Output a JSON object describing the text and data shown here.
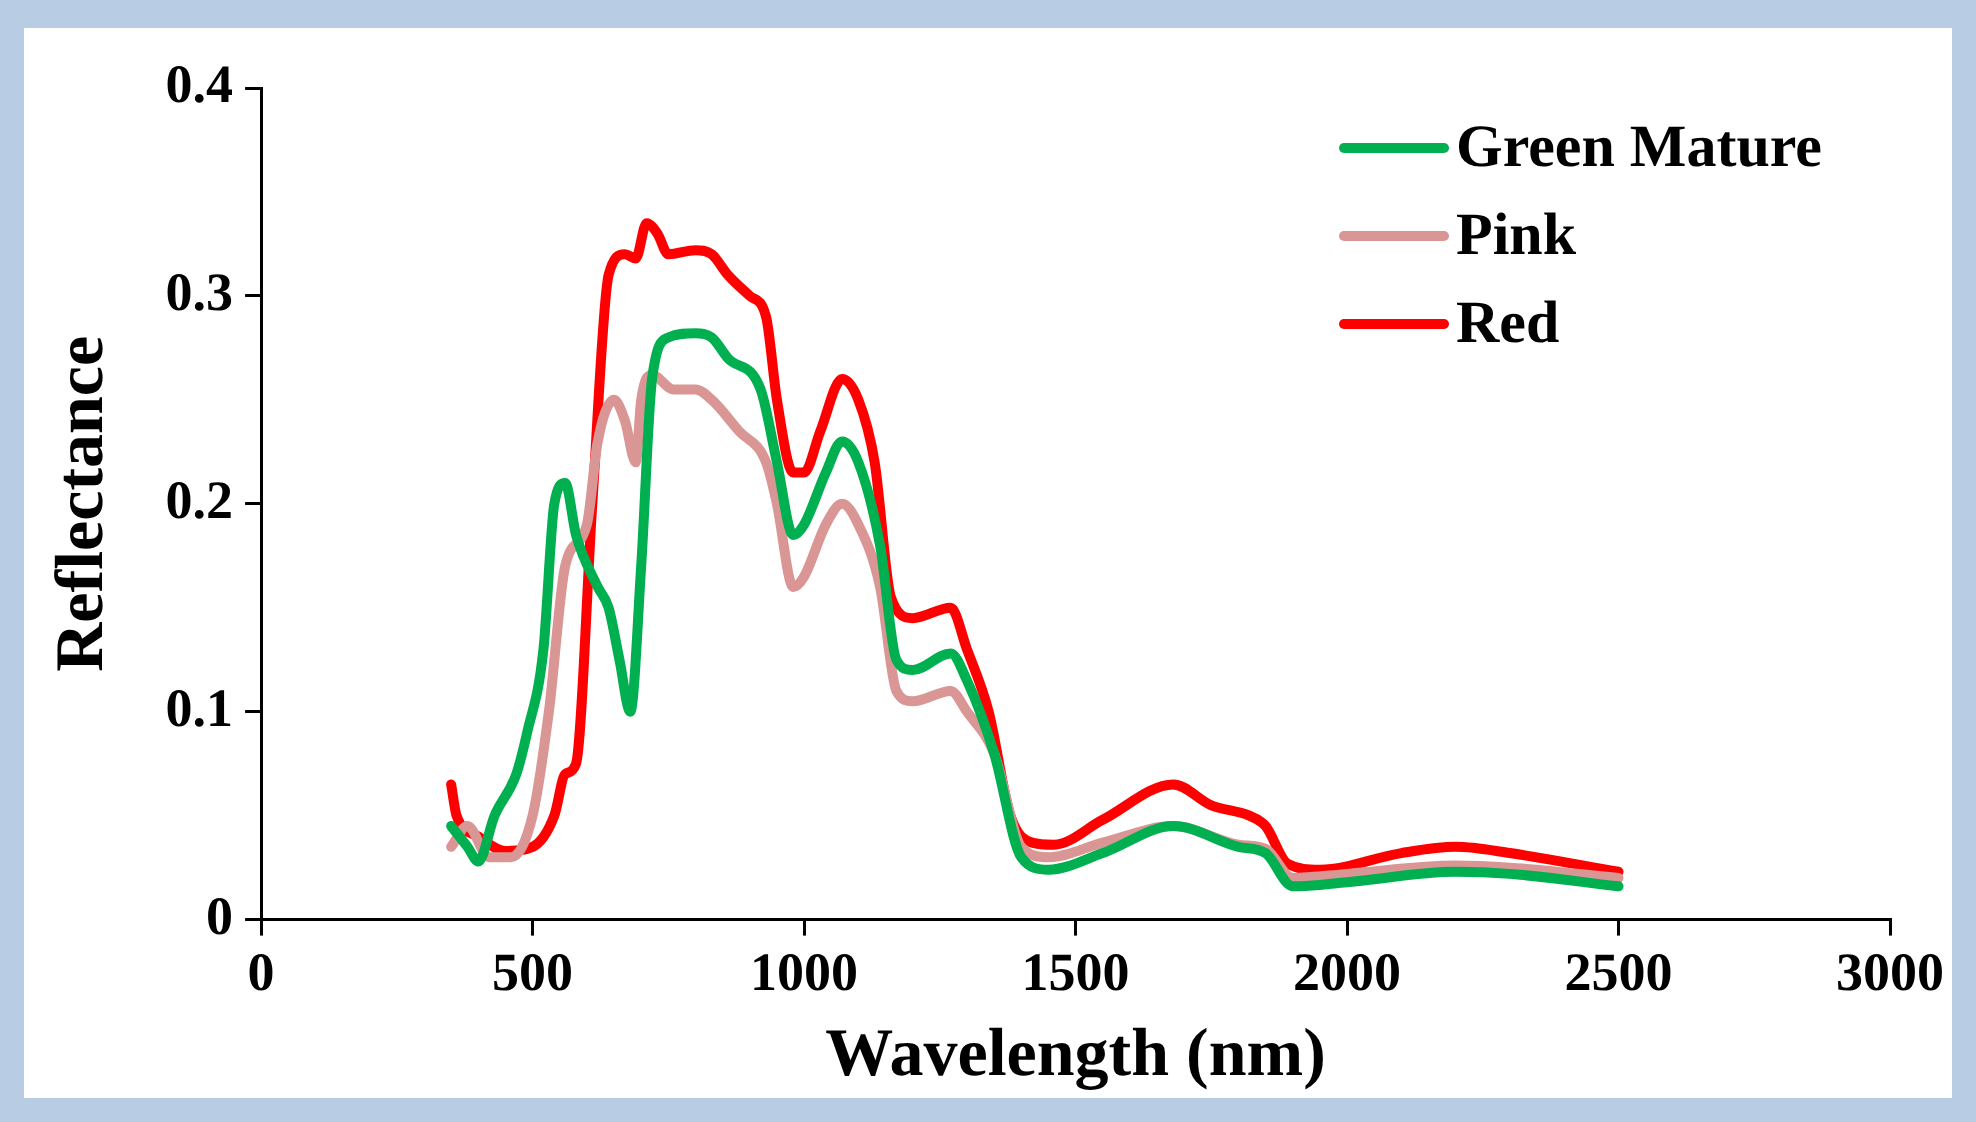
{
  "chart_data": {
    "type": "line",
    "xlabel": "Wavelength (nm)",
    "ylabel": "Reflectance",
    "xlim": [
      0,
      3000
    ],
    "xticks": [
      0,
      500,
      1000,
      1500,
      2000,
      2500,
      3000
    ],
    "ylim": [
      0,
      0.4
    ],
    "yticks": [
      0,
      0.1,
      0.2,
      0.3,
      0.4
    ],
    "grid": false,
    "legend": "top right",
    "marker": "none",
    "line_style": "solid",
    "series": [
      {
        "name": "Green Mature",
        "color": "#00b050",
        "x": [
          350,
          380,
          400,
          430,
          470,
          490,
          520,
          540,
          560,
          580,
          620,
          640,
          660,
          680,
          700,
          720,
          750,
          800,
          830,
          860,
          920,
          950,
          980,
          1000,
          1040,
          1070,
          1100,
          1140,
          1170,
          1200,
          1270,
          1300,
          1350,
          1400,
          1450,
          1550,
          1680,
          1800,
          1850,
          1900,
          2000,
          2200,
          2300,
          2500
        ],
        "values": [
          0.045,
          0.035,
          0.028,
          0.05,
          0.07,
          0.09,
          0.13,
          0.2,
          0.21,
          0.185,
          0.16,
          0.15,
          0.125,
          0.1,
          0.17,
          0.26,
          0.28,
          0.282,
          0.28,
          0.27,
          0.255,
          0.22,
          0.185,
          0.19,
          0.215,
          0.23,
          0.22,
          0.18,
          0.125,
          0.12,
          0.128,
          0.115,
          0.08,
          0.03,
          0.024,
          0.032,
          0.045,
          0.035,
          0.032,
          0.016,
          0.018,
          0.023,
          0.022,
          0.016
        ]
      },
      {
        "name": "Pink",
        "color": "#d99694",
        "x": [
          350,
          380,
          420,
          460,
          500,
          530,
          560,
          600,
          620,
          650,
          670,
          690,
          700,
          720,
          760,
          800,
          830,
          880,
          930,
          950,
          980,
          1000,
          1040,
          1070,
          1100,
          1140,
          1170,
          1200,
          1270,
          1300,
          1350,
          1400,
          1450,
          1550,
          1680,
          1800,
          1850,
          1900,
          2000,
          2200,
          2300,
          2500
        ],
        "values": [
          0.035,
          0.045,
          0.03,
          0.03,
          0.05,
          0.1,
          0.17,
          0.19,
          0.23,
          0.25,
          0.24,
          0.22,
          0.25,
          0.262,
          0.255,
          0.255,
          0.25,
          0.235,
          0.22,
          0.2,
          0.16,
          0.165,
          0.19,
          0.2,
          0.19,
          0.16,
          0.11,
          0.105,
          0.11,
          0.1,
          0.08,
          0.035,
          0.03,
          0.037,
          0.045,
          0.036,
          0.034,
          0.02,
          0.022,
          0.026,
          0.025,
          0.02
        ]
      },
      {
        "name": "Red",
        "color": "#ff0000",
        "x": [
          350,
          360,
          400,
          450,
          500,
          540,
          560,
          580,
          610,
          640,
          670,
          690,
          710,
          730,
          750,
          800,
          830,
          860,
          900,
          930,
          950,
          980,
          1000,
          1030,
          1070,
          1100,
          1130,
          1160,
          1200,
          1270,
          1300,
          1340,
          1380,
          1420,
          1460,
          1550,
          1680,
          1750,
          1820,
          1850,
          1890,
          1950,
          2100,
          2200,
          2300,
          2500
        ],
        "values": [
          0.065,
          0.05,
          0.04,
          0.033,
          0.035,
          0.05,
          0.07,
          0.075,
          0.2,
          0.31,
          0.32,
          0.318,
          0.335,
          0.33,
          0.32,
          0.322,
          0.32,
          0.31,
          0.3,
          0.29,
          0.25,
          0.215,
          0.215,
          0.235,
          0.26,
          0.25,
          0.22,
          0.155,
          0.145,
          0.15,
          0.13,
          0.1,
          0.05,
          0.037,
          0.036,
          0.048,
          0.065,
          0.055,
          0.05,
          0.045,
          0.027,
          0.024,
          0.032,
          0.035,
          0.032,
          0.023
        ]
      }
    ]
  }
}
